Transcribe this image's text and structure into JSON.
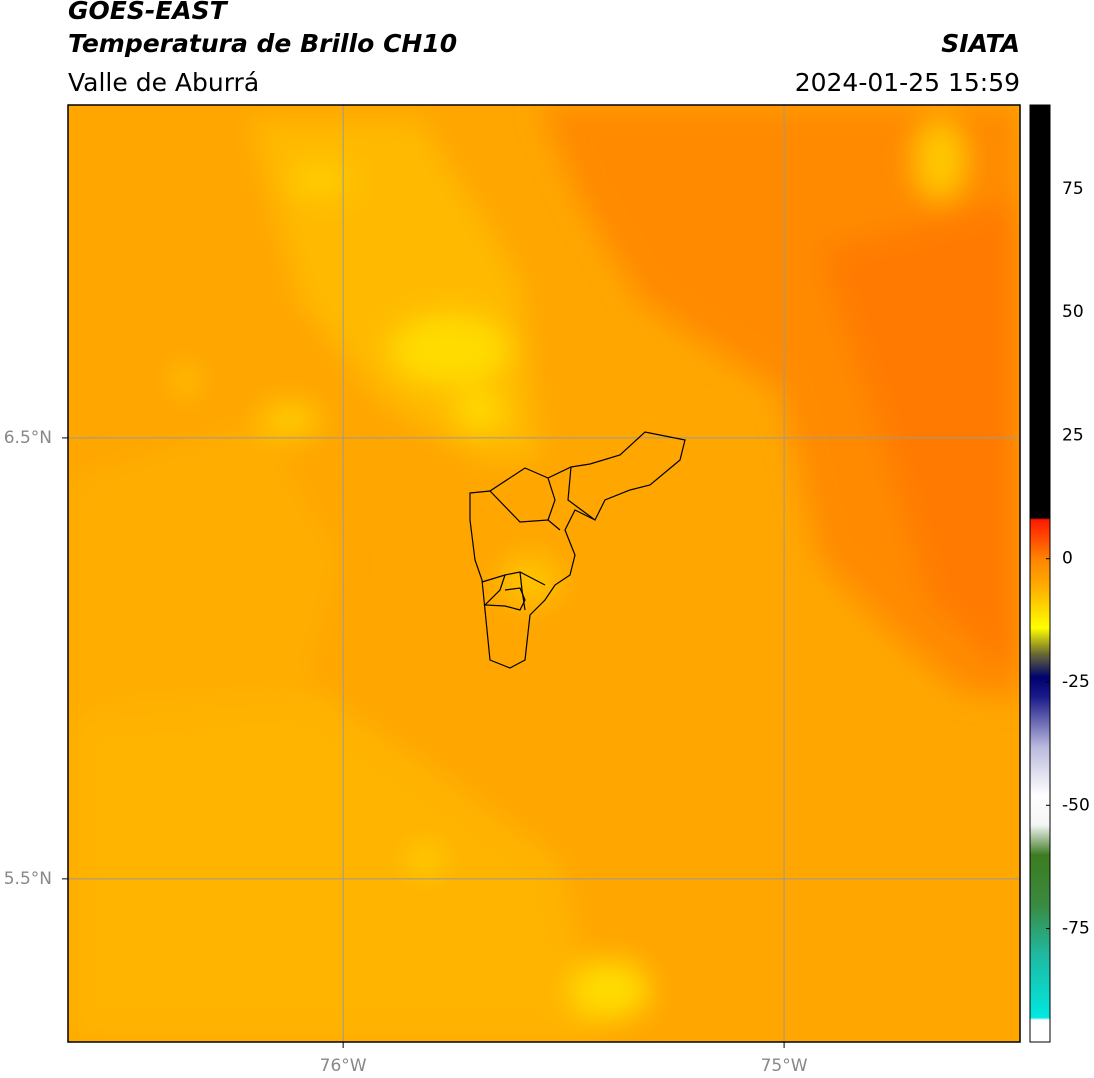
{
  "chart_data": {
    "type": "map",
    "title": "GOES-EAST",
    "subtitle": "Temperatura de Brillo CH10",
    "region": "Valle de Aburrá",
    "source": "SIATA",
    "datetime": "2024-01-25 15:59",
    "xlim": [
      -76.624,
      -74.465
    ],
    "ylim": [
      5.13,
      7.255
    ],
    "xticks": [
      {
        "value": -76,
        "label": "76°W"
      },
      {
        "value": -75,
        "label": "75°W"
      }
    ],
    "yticks": [
      {
        "value": 6.5,
        "label": "6.5°N"
      },
      {
        "value": 5.5,
        "label": "5.5°N"
      }
    ],
    "grid": true,
    "colorbar": {
      "ylim": [
        -98,
        92
      ],
      "yticks": [
        75,
        50,
        25,
        0,
        -25,
        -50,
        -75
      ],
      "stops": [
        {
          "value": -98,
          "color": "#ffffff"
        },
        {
          "value": -93.5,
          "color": "#ffffff"
        },
        {
          "value": -93,
          "color": "#00e8e0"
        },
        {
          "value": -80,
          "color": "#20b8a0"
        },
        {
          "value": -70,
          "color": "#3a8a40"
        },
        {
          "value": -60,
          "color": "#3c7c20"
        },
        {
          "value": -54,
          "color": "#f4f4f4"
        },
        {
          "value": -48,
          "color": "#ffffff"
        },
        {
          "value": -38,
          "color": "#b8b8dc"
        },
        {
          "value": -28,
          "color": "#1a1a8a"
        },
        {
          "value": -24,
          "color": "#000070"
        },
        {
          "value": -19,
          "color": "#707030"
        },
        {
          "value": -14,
          "color": "#ffff00"
        },
        {
          "value": -6,
          "color": "#ffb000"
        },
        {
          "value": 0,
          "color": "#ff8400"
        },
        {
          "value": 8,
          "color": "#ff1800"
        },
        {
          "value": 8.3,
          "color": "#000000"
        },
        {
          "value": 92,
          "color": "#000000"
        }
      ]
    }
  }
}
